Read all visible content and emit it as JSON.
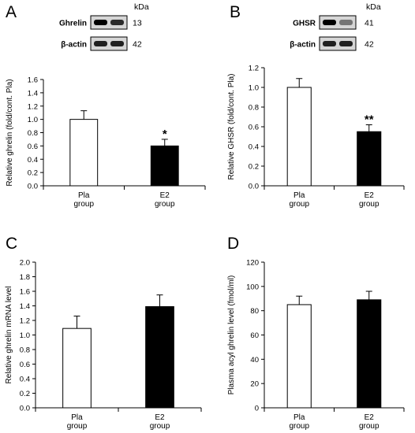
{
  "chart_data": [
    {
      "panel": "A",
      "type": "bar",
      "categories": [
        [
          "Pla",
          "group"
        ],
        [
          "E2",
          "group"
        ]
      ],
      "values": [
        1.0,
        0.6
      ],
      "errors": [
        0.13,
        0.1
      ],
      "bar_colors": [
        "#ffffff",
        "#000000"
      ],
      "significance": [
        "",
        "*"
      ],
      "ylabel": "Relative ghrelin (fold/cont. Pla)",
      "ylim": [
        0,
        1.6
      ],
      "yticks": [
        "0.0",
        "0.2",
        "0.4",
        "0.6",
        "0.8",
        "1.0",
        "1.2",
        "1.4",
        "1.6"
      ],
      "blot": {
        "kda_header": "kDa",
        "rows": [
          {
            "label": "Ghrelin",
            "kda": "13"
          },
          {
            "label": "β-actin",
            "kda": "42"
          }
        ]
      }
    },
    {
      "panel": "B",
      "type": "bar",
      "categories": [
        [
          "Pla",
          "group"
        ],
        [
          "E2",
          "group"
        ]
      ],
      "values": [
        1.0,
        0.55
      ],
      "errors": [
        0.09,
        0.07
      ],
      "bar_colors": [
        "#ffffff",
        "#000000"
      ],
      "significance": [
        "",
        "**"
      ],
      "ylabel": "Relative GHSR (fold/cont. Pla)",
      "ylim": [
        0,
        1.2
      ],
      "yticks": [
        "0.0",
        "0.2",
        "0.4",
        "0.6",
        "0.8",
        "1.0",
        "1.2"
      ],
      "blot": {
        "kda_header": "kDa",
        "rows": [
          {
            "label": "GHSR",
            "kda": "41"
          },
          {
            "label": "β-actin",
            "kda": "42"
          }
        ]
      }
    },
    {
      "panel": "C",
      "type": "bar",
      "categories": [
        [
          "Pla",
          "group"
        ],
        [
          "E2",
          "group"
        ]
      ],
      "values": [
        1.09,
        1.39
      ],
      "errors": [
        0.17,
        0.16
      ],
      "bar_colors": [
        "#ffffff",
        "#000000"
      ],
      "significance": [
        "",
        ""
      ],
      "ylabel": "Relative ghrelin mRNA level",
      "ylim": [
        0,
        2.0
      ],
      "yticks": [
        "0.0",
        "0.2",
        "0.4",
        "0.6",
        "0.8",
        "1.0",
        "1.2",
        "1.4",
        "1.6",
        "1.8",
        "2.0"
      ]
    },
    {
      "panel": "D",
      "type": "bar",
      "categories": [
        [
          "Pla",
          "group"
        ],
        [
          "E2",
          "group"
        ]
      ],
      "values": [
        85,
        89
      ],
      "errors": [
        7,
        7
      ],
      "bar_colors": [
        "#ffffff",
        "#000000"
      ],
      "significance": [
        "",
        ""
      ],
      "ylabel": "Plasma acyl ghrelin level (fmol/ml)",
      "ylim": [
        0,
        120
      ],
      "yticks": [
        "0",
        "20",
        "40",
        "60",
        "80",
        "100",
        "120"
      ]
    }
  ]
}
